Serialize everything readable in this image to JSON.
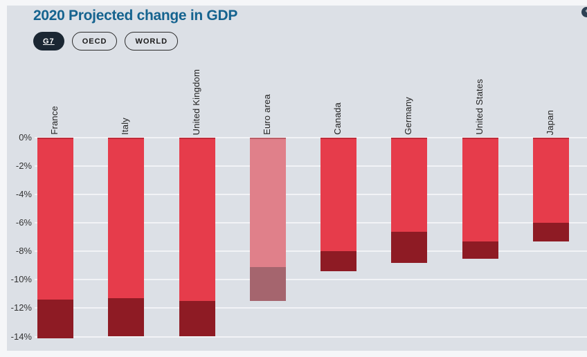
{
  "header": {
    "title": "2020 Projected change in GDP",
    "tabs": [
      {
        "label": "G7",
        "active": true
      },
      {
        "label": "OECD",
        "active": false
      },
      {
        "label": "WORLD",
        "active": false
      }
    ]
  },
  "colors": {
    "page_bg": "#f5f6f8",
    "panel_bg": "#dce0e6",
    "title": "#15638f",
    "active_tab_bg": "#1b2733",
    "tab_border": "#2a2a2a",
    "gridline": "#f2f3f6",
    "axis_text": "#333333",
    "label_text": "#222222",
    "bar_light": "#e63c4b",
    "bar_dark": "#8e1b24",
    "bar_light_muted": "#e0808a",
    "bar_dark_muted": "#a5656e"
  },
  "chart_data": {
    "type": "bar",
    "title": "2020 Projected change in GDP",
    "categories": [
      "France",
      "Italy",
      "United Kingdom",
      "Euro area",
      "Canada",
      "Germany",
      "United States",
      "Japan"
    ],
    "series": [
      {
        "name": "light-red-segment-end",
        "color_key": "bar_light",
        "values": [
          -11.4,
          -11.3,
          -11.5,
          -9.1,
          -8.0,
          -6.6,
          -7.3,
          -6.0
        ]
      },
      {
        "name": "dark-red-segment-end",
        "color_key": "bar_dark",
        "values": [
          -14.1,
          -14.0,
          -14.0,
          -11.5,
          -9.4,
          -8.8,
          -8.5,
          -7.3
        ]
      }
    ],
    "stacked_cumulative": true,
    "muted_categories": [
      "Euro area"
    ],
    "xlabel": "",
    "ylabel": "",
    "ylim": [
      -14,
      0
    ],
    "yticks": [
      0,
      -2,
      -4,
      -6,
      -8,
      -10,
      -12,
      -14
    ],
    "ytick_suffix": "%",
    "grid": true,
    "legend": "none",
    "bars_direction": "downward"
  }
}
